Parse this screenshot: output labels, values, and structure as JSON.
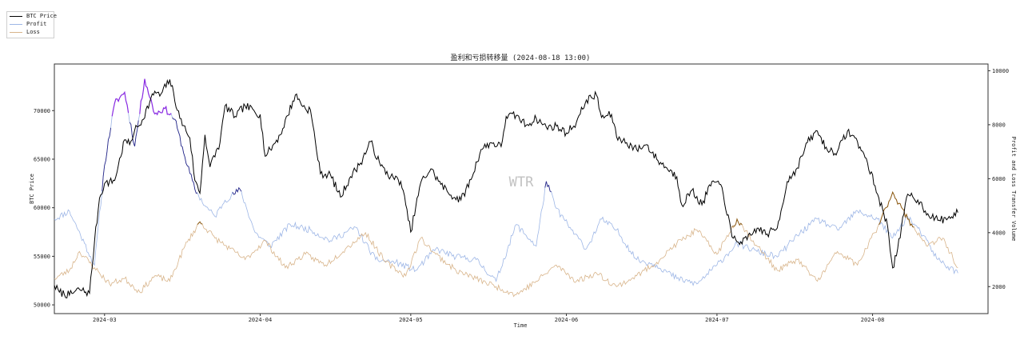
{
  "chart_data": {
    "type": "line",
    "title": "盈利和亏损转移量 (2024-08-18 13:00)",
    "xlabel": "Time",
    "ylabel_left": "BTC Price",
    "ylabel_right": "Profit and Loss Transfer Volume",
    "watermark": "WTR",
    "x_ticks": [
      "2024-03",
      "2024-04",
      "2024-05",
      "2024-06",
      "2024-07",
      "2024-08"
    ],
    "y_left_ticks": [
      50000,
      55000,
      60000,
      65000,
      70000
    ],
    "y_right_ticks": [
      2000,
      4000,
      6000,
      8000,
      10000
    ],
    "x_range": [
      "2024-02-20",
      "2024-08-24"
    ],
    "y_left_range": [
      49100,
      74800
    ],
    "y_right_range": [
      1000,
      10250
    ],
    "grid": false,
    "legend_position": "outside-top-left",
    "colors": {
      "btc_price": "#000000",
      "profit": "#9db6e6",
      "loss": "#d8b48a",
      "profit_highlight": "#8a2be2",
      "profit_high_dark": "#2a2a8a",
      "loss_highlight": "#8b5a14"
    },
    "series": [
      {
        "name": "BTC Price",
        "axis": "left",
        "points": [
          [
            "2024-02-20",
            52000
          ],
          [
            "2024-02-21",
            51300
          ],
          [
            "2024-02-23",
            51000
          ],
          [
            "2024-02-25",
            51600
          ],
          [
            "2024-02-27",
            51200
          ],
          [
            "2024-02-28",
            56500
          ],
          [
            "2024-02-29",
            61000
          ],
          [
            "2024-03-01",
            62500
          ],
          [
            "2024-03-03",
            62800
          ],
          [
            "2024-03-05",
            67000
          ],
          [
            "2024-03-06",
            66500
          ],
          [
            "2024-03-07",
            68000
          ],
          [
            "2024-03-08",
            68500
          ],
          [
            "2024-03-11",
            72000
          ],
          [
            "2024-03-12",
            71500
          ],
          [
            "2024-03-14",
            73200
          ],
          [
            "2024-03-16",
            69200
          ],
          [
            "2024-03-18",
            67200
          ],
          [
            "2024-03-19",
            62800
          ],
          [
            "2024-03-20",
            61500
          ],
          [
            "2024-03-21",
            67500
          ],
          [
            "2024-03-22",
            64200
          ],
          [
            "2024-03-24",
            66700
          ],
          [
            "2024-03-25",
            70500
          ],
          [
            "2024-03-27",
            69400
          ],
          [
            "2024-03-29",
            70500
          ],
          [
            "2024-04-01",
            69600
          ],
          [
            "2024-04-02",
            65300
          ],
          [
            "2024-04-03",
            66000
          ],
          [
            "2024-04-05",
            67500
          ],
          [
            "2024-04-08",
            71600
          ],
          [
            "2024-04-10",
            70200
          ],
          [
            "2024-04-11",
            70100
          ],
          [
            "2024-04-13",
            63500
          ],
          [
            "2024-04-15",
            63400
          ],
          [
            "2024-04-17",
            61100
          ],
          [
            "2024-04-19",
            63200
          ],
          [
            "2024-04-21",
            64600
          ],
          [
            "2024-04-23",
            66800
          ],
          [
            "2024-04-25",
            64300
          ],
          [
            "2024-04-27",
            63200
          ],
          [
            "2024-04-29",
            62700
          ],
          [
            "2024-04-30",
            60300
          ],
          [
            "2024-05-01",
            57500
          ],
          [
            "2024-05-03",
            62600
          ],
          [
            "2024-05-05",
            64000
          ],
          [
            "2024-05-07",
            62400
          ],
          [
            "2024-05-09",
            61300
          ],
          [
            "2024-05-11",
            60800
          ],
          [
            "2024-05-13",
            62900
          ],
          [
            "2024-05-15",
            66000
          ],
          [
            "2024-05-17",
            66700
          ],
          [
            "2024-05-19",
            66300
          ],
          [
            "2024-05-20",
            69400
          ],
          [
            "2024-05-22",
            69500
          ],
          [
            "2024-05-24",
            68500
          ],
          [
            "2024-05-26",
            69200
          ],
          [
            "2024-05-28",
            68300
          ],
          [
            "2024-05-30",
            68400
          ],
          [
            "2024-06-01",
            67700
          ],
          [
            "2024-06-03",
            68800
          ],
          [
            "2024-06-05",
            71100
          ],
          [
            "2024-06-07",
            71600
          ],
          [
            "2024-06-08",
            69300
          ],
          [
            "2024-06-10",
            69600
          ],
          [
            "2024-06-11",
            67300
          ],
          [
            "2024-06-13",
            66700
          ],
          [
            "2024-06-15",
            66000
          ],
          [
            "2024-06-17",
            66500
          ],
          [
            "2024-06-19",
            65000
          ],
          [
            "2024-06-21",
            64100
          ],
          [
            "2024-06-23",
            63200
          ],
          [
            "2024-06-24",
            60300
          ],
          [
            "2024-06-26",
            61800
          ],
          [
            "2024-06-28",
            60300
          ],
          [
            "2024-06-30",
            62700
          ],
          [
            "2024-07-02",
            62100
          ],
          [
            "2024-07-04",
            57000
          ],
          [
            "2024-07-05",
            56500
          ],
          [
            "2024-07-07",
            56700
          ],
          [
            "2024-07-09",
            57900
          ],
          [
            "2024-07-11",
            57300
          ],
          [
            "2024-07-13",
            57900
          ],
          [
            "2024-07-15",
            62700
          ],
          [
            "2024-07-17",
            64100
          ],
          [
            "2024-07-19",
            66700
          ],
          [
            "2024-07-21",
            67900
          ],
          [
            "2024-07-23",
            65900
          ],
          [
            "2024-07-25",
            65800
          ],
          [
            "2024-07-27",
            67900
          ],
          [
            "2024-07-29",
            66800
          ],
          [
            "2024-07-31",
            64600
          ],
          [
            "2024-08-02",
            61400
          ],
          [
            "2024-08-04",
            58100
          ],
          [
            "2024-08-05",
            53800
          ],
          [
            "2024-08-06",
            55800
          ],
          [
            "2024-08-08",
            61400
          ],
          [
            "2024-08-10",
            60800
          ],
          [
            "2024-08-12",
            59400
          ],
          [
            "2024-08-14",
            58700
          ],
          [
            "2024-08-16",
            58900
          ],
          [
            "2024-08-18",
            59500
          ]
        ]
      },
      {
        "name": "Profit",
        "axis": "right",
        "points": [
          [
            "2024-02-20",
            4500
          ],
          [
            "2024-02-23",
            4800
          ],
          [
            "2024-02-26",
            3600
          ],
          [
            "2024-02-28",
            2800
          ],
          [
            "2024-03-01",
            6500
          ],
          [
            "2024-03-03",
            8800
          ],
          [
            "2024-03-05",
            9200
          ],
          [
            "2024-03-07",
            7200
          ],
          [
            "2024-03-09",
            9700
          ],
          [
            "2024-03-11",
            8400
          ],
          [
            "2024-03-13",
            8600
          ],
          [
            "2024-03-15",
            8200
          ],
          [
            "2024-03-17",
            6800
          ],
          [
            "2024-03-19",
            5600
          ],
          [
            "2024-03-21",
            5000
          ],
          [
            "2024-03-23",
            4600
          ],
          [
            "2024-03-25",
            5200
          ],
          [
            "2024-03-28",
            5600
          ],
          [
            "2024-03-31",
            4000
          ],
          [
            "2024-04-03",
            3500
          ],
          [
            "2024-04-07",
            4300
          ],
          [
            "2024-04-11",
            4100
          ],
          [
            "2024-04-15",
            3700
          ],
          [
            "2024-04-20",
            4200
          ],
          [
            "2024-04-24",
            3000
          ],
          [
            "2024-04-28",
            2900
          ],
          [
            "2024-05-02",
            2600
          ],
          [
            "2024-05-06",
            3400
          ],
          [
            "2024-05-10",
            3100
          ],
          [
            "2024-05-14",
            3000
          ],
          [
            "2024-05-18",
            2200
          ],
          [
            "2024-05-22",
            4300
          ],
          [
            "2024-05-26",
            3500
          ],
          [
            "2024-05-28",
            5900
          ],
          [
            "2024-05-30",
            4900
          ],
          [
            "2024-06-02",
            4100
          ],
          [
            "2024-06-05",
            3400
          ],
          [
            "2024-06-08",
            4500
          ],
          [
            "2024-06-11",
            4100
          ],
          [
            "2024-06-15",
            3000
          ],
          [
            "2024-06-19",
            2800
          ],
          [
            "2024-06-23",
            2300
          ],
          [
            "2024-06-27",
            2100
          ],
          [
            "2024-07-01",
            2800
          ],
          [
            "2024-07-05",
            3600
          ],
          [
            "2024-07-09",
            3300
          ],
          [
            "2024-07-13",
            3100
          ],
          [
            "2024-07-17",
            3900
          ],
          [
            "2024-07-21",
            4500
          ],
          [
            "2024-07-25",
            4100
          ],
          [
            "2024-07-29",
            4800
          ],
          [
            "2024-08-02",
            4500
          ],
          [
            "2024-08-05",
            3800
          ],
          [
            "2024-08-08",
            4600
          ],
          [
            "2024-08-11",
            3900
          ],
          [
            "2024-08-14",
            3000
          ],
          [
            "2024-08-18",
            2500
          ]
        ]
      },
      {
        "name": "Loss",
        "axis": "right",
        "points": [
          [
            "2024-02-20",
            2300
          ],
          [
            "2024-02-23",
            2600
          ],
          [
            "2024-02-25",
            3300
          ],
          [
            "2024-02-28",
            2700
          ],
          [
            "2024-03-02",
            2100
          ],
          [
            "2024-03-05",
            2300
          ],
          [
            "2024-03-08",
            1800
          ],
          [
            "2024-03-11",
            2400
          ],
          [
            "2024-03-14",
            2200
          ],
          [
            "2024-03-17",
            3500
          ],
          [
            "2024-03-20",
            4400
          ],
          [
            "2024-03-23",
            3800
          ],
          [
            "2024-03-26",
            3400
          ],
          [
            "2024-03-29",
            3000
          ],
          [
            "2024-04-02",
            3700
          ],
          [
            "2024-04-06",
            2700
          ],
          [
            "2024-04-10",
            3200
          ],
          [
            "2024-04-14",
            2800
          ],
          [
            "2024-04-18",
            3400
          ],
          [
            "2024-04-22",
            4000
          ],
          [
            "2024-04-26",
            2900
          ],
          [
            "2024-04-30",
            2400
          ],
          [
            "2024-05-03",
            3800
          ],
          [
            "2024-05-06",
            3200
          ],
          [
            "2024-05-10",
            2600
          ],
          [
            "2024-05-14",
            2300
          ],
          [
            "2024-05-18",
            2000
          ],
          [
            "2024-05-22",
            1700
          ],
          [
            "2024-05-26",
            2200
          ],
          [
            "2024-05-30",
            2800
          ],
          [
            "2024-06-03",
            2200
          ],
          [
            "2024-06-07",
            2500
          ],
          [
            "2024-06-11",
            2000
          ],
          [
            "2024-06-15",
            2400
          ],
          [
            "2024-06-19",
            2900
          ],
          [
            "2024-06-23",
            3600
          ],
          [
            "2024-06-27",
            4100
          ],
          [
            "2024-07-01",
            3200
          ],
          [
            "2024-07-05",
            4500
          ],
          [
            "2024-07-09",
            3500
          ],
          [
            "2024-07-13",
            2600
          ],
          [
            "2024-07-17",
            3000
          ],
          [
            "2024-07-21",
            2200
          ],
          [
            "2024-07-25",
            3300
          ],
          [
            "2024-07-29",
            2800
          ],
          [
            "2024-08-02",
            4200
          ],
          [
            "2024-08-05",
            5500
          ],
          [
            "2024-08-08",
            4500
          ],
          [
            "2024-08-12",
            3500
          ],
          [
            "2024-08-15",
            3800
          ],
          [
            "2024-08-18",
            2700
          ]
        ]
      }
    ]
  }
}
